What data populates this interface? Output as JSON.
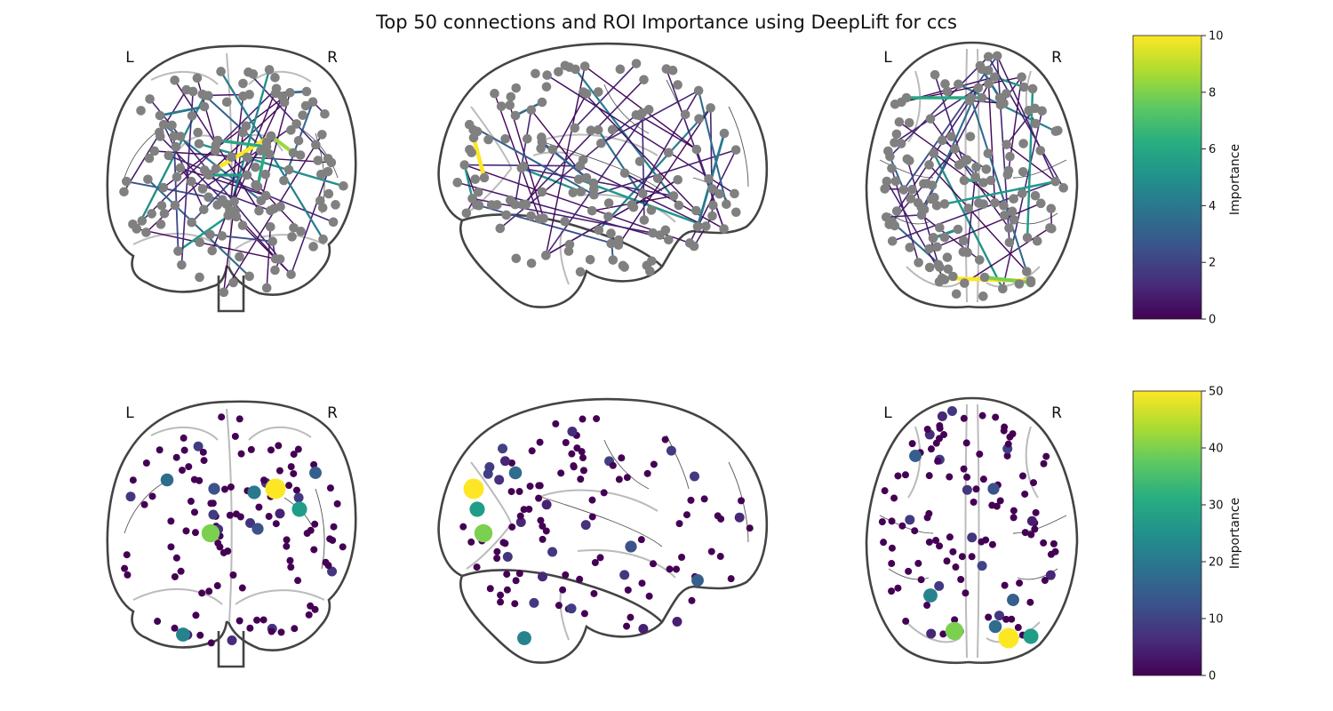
{
  "title": "Top 50 connections and ROI Importance using DeepLift for ccs",
  "side_labels": {
    "left": "L",
    "right": "R"
  },
  "colorbars": [
    {
      "label": "Importance",
      "min": 0,
      "max": 10,
      "ticks": [
        "0",
        "2",
        "4",
        "6",
        "8",
        "10"
      ]
    },
    {
      "label": "Importance",
      "min": 0,
      "max": 50,
      "ticks": [
        "0",
        "10",
        "20",
        "30",
        "40",
        "50"
      ]
    }
  ],
  "colormap": "viridis",
  "node_color": "#808080",
  "outline_color": "#444444",
  "views": [
    {
      "row": "connections",
      "view": "coronal",
      "show_lr": true
    },
    {
      "row": "connections",
      "view": "sagittal",
      "show_lr": false
    },
    {
      "row": "connections",
      "view": "axial",
      "show_lr": true
    },
    {
      "row": "roi-importance",
      "view": "coronal",
      "show_lr": true
    },
    {
      "row": "roi-importance",
      "view": "sagittal",
      "show_lr": false
    },
    {
      "row": "roi-importance",
      "view": "axial",
      "show_lr": true
    }
  ]
}
